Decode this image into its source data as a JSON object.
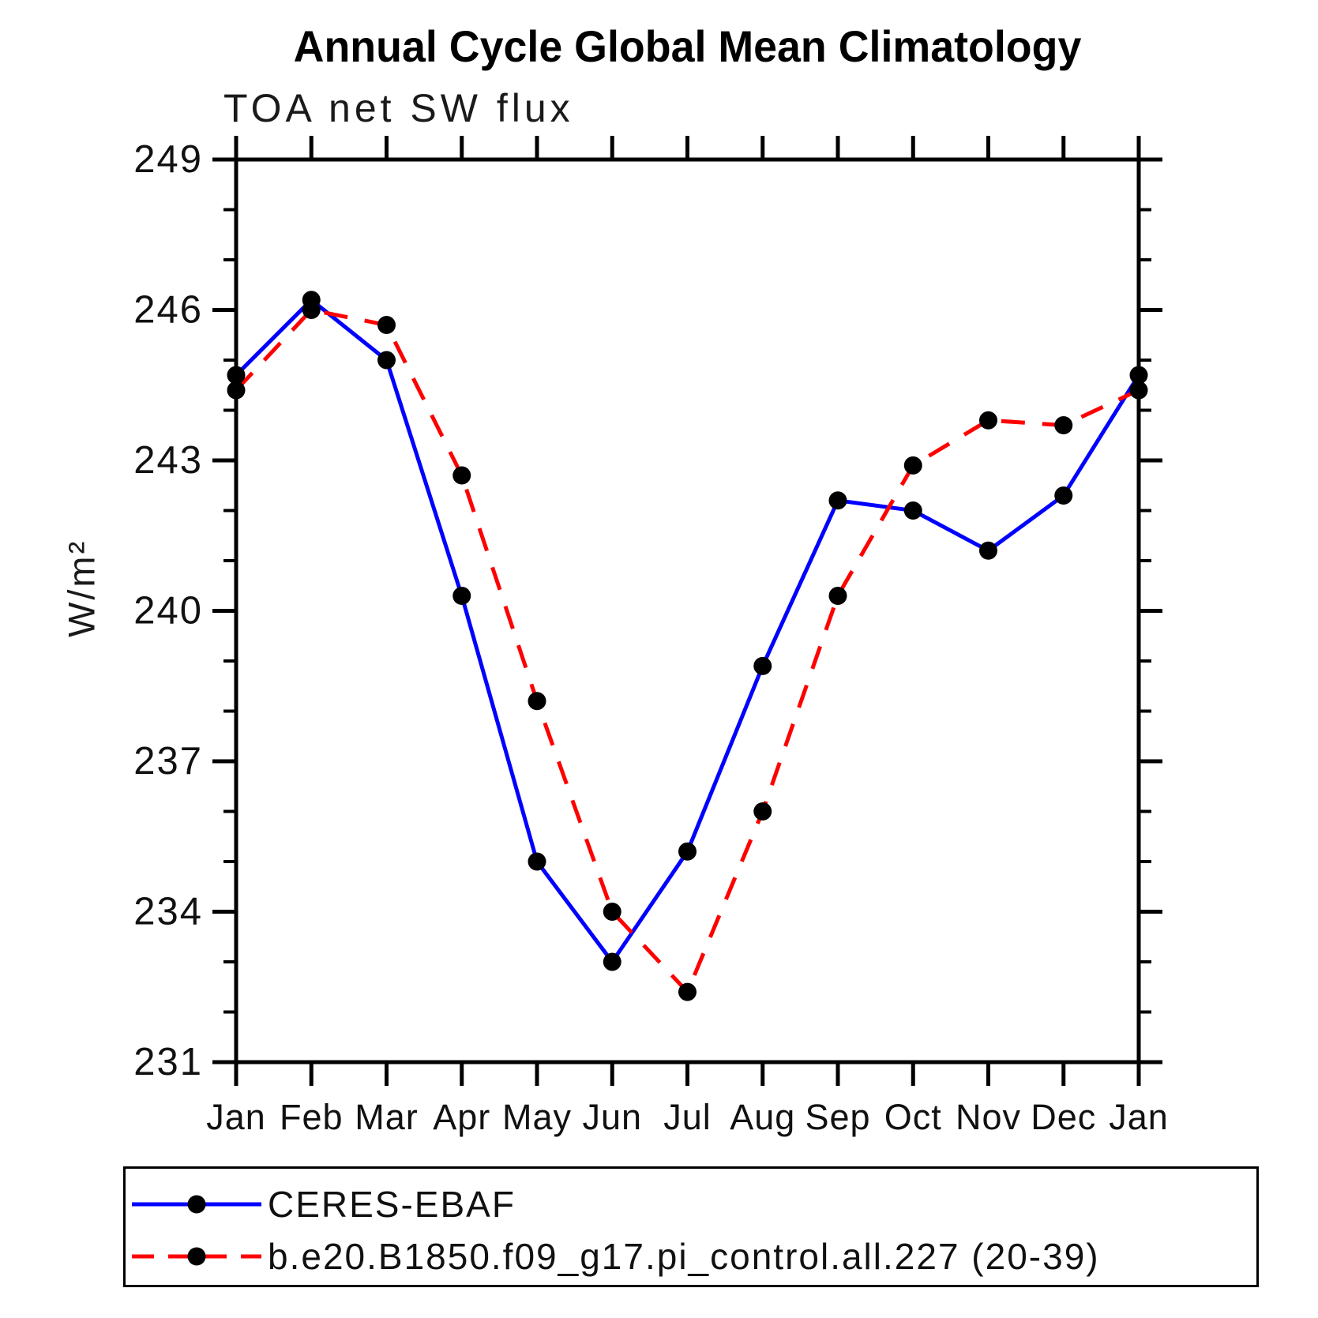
{
  "title": "Annual Cycle Global Mean Climatology",
  "subtitle": "TOA net SW flux",
  "y_axis_label": "W/m²",
  "legend": {
    "entries": [
      {
        "label": "CERES-EBAF"
      },
      {
        "label": "b.e20.B1850.f09_g17.pi_control.all.227 (20-39)"
      }
    ]
  },
  "chart_data": {
    "type": "line",
    "title": "Annual Cycle Global Mean Climatology",
    "subtitle": "TOA net SW flux",
    "ylabel": "W/m²",
    "x_categories": [
      "Jan",
      "Feb",
      "Mar",
      "Apr",
      "May",
      "Jun",
      "Jul",
      "Aug",
      "Sep",
      "Oct",
      "Nov",
      "Dec",
      "Jan"
    ],
    "ylim": [
      231,
      249
    ],
    "yticks_major": [
      231,
      234,
      237,
      240,
      243,
      246,
      249
    ],
    "ytick_minor_step": 1,
    "grid": false,
    "legend_position": "bottom",
    "marker": {
      "shape": "circle",
      "color": "#000000"
    },
    "series": [
      {
        "name": "CERES-EBAF",
        "color": "#0000ff",
        "line_style": "solid",
        "values": [
          244.7,
          246.2,
          245.0,
          240.3,
          235.0,
          233.0,
          235.2,
          238.9,
          242.2,
          242.0,
          241.2,
          242.3,
          244.7
        ]
      },
      {
        "name": "b.e20.B1850.f09_g17.pi_control.all.227 (20-39)",
        "color": "#ff0000",
        "line_style": "dashed",
        "values": [
          244.4,
          246.0,
          245.7,
          242.7,
          238.2,
          234.0,
          232.4,
          236.0,
          240.3,
          242.9,
          243.8,
          243.7,
          244.4
        ]
      }
    ]
  }
}
